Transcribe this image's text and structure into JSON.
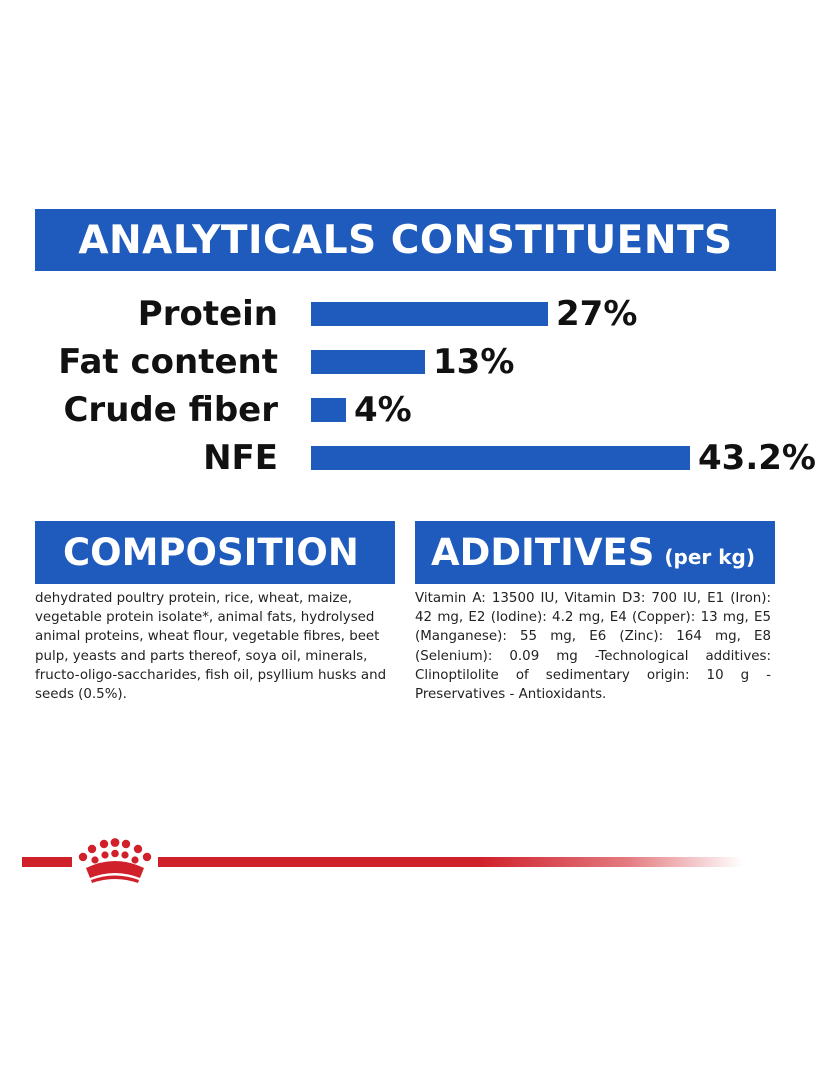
{
  "analytics": {
    "title": "ANALYTICALS CONSTITUENTS",
    "items": [
      {
        "label": "Protein",
        "value_text": "27%",
        "value": 27
      },
      {
        "label": "Fat content",
        "value_text": "13%",
        "value": 13
      },
      {
        "label": "Crude fiber",
        "value_text": "4%",
        "value": 4
      },
      {
        "label": "NFE",
        "value_text": "43.2%",
        "value": 43.2
      }
    ]
  },
  "composition": {
    "title": "COMPOSITION",
    "text": "dehydrated poultry protein, rice, wheat, maize, vegetable protein isolate*, animal fats, hydrolysed animal proteins, wheat flour, vegetable fibres, beet pulp, yeasts and parts thereof, soya oil, minerals, fructo-oligo-saccharides, fish oil, psyllium husks and seeds (0.5%)."
  },
  "additives": {
    "title": "ADDITIVES",
    "unit": "(per kg)",
    "text": "Vitamin A: 13500 IU, Vitamin D3: 700 IU, E1 (Iron): 42 mg, E2 (Iodine): 4.2 mg, E4 (Copper): 13 mg, E5 (Manganese): 55 mg, E6 (Zinc): 164 mg, E8 (Selenium): 0.09 mg -Technological additives: Clinoptilolite of sedimentary origin: 10 g - Preservatives - Antioxidants."
  },
  "colors": {
    "brand_blue": "#1f5bbd",
    "brand_red": "#d0202a"
  },
  "icons": {
    "logo": "royal-canin-crown-icon"
  }
}
